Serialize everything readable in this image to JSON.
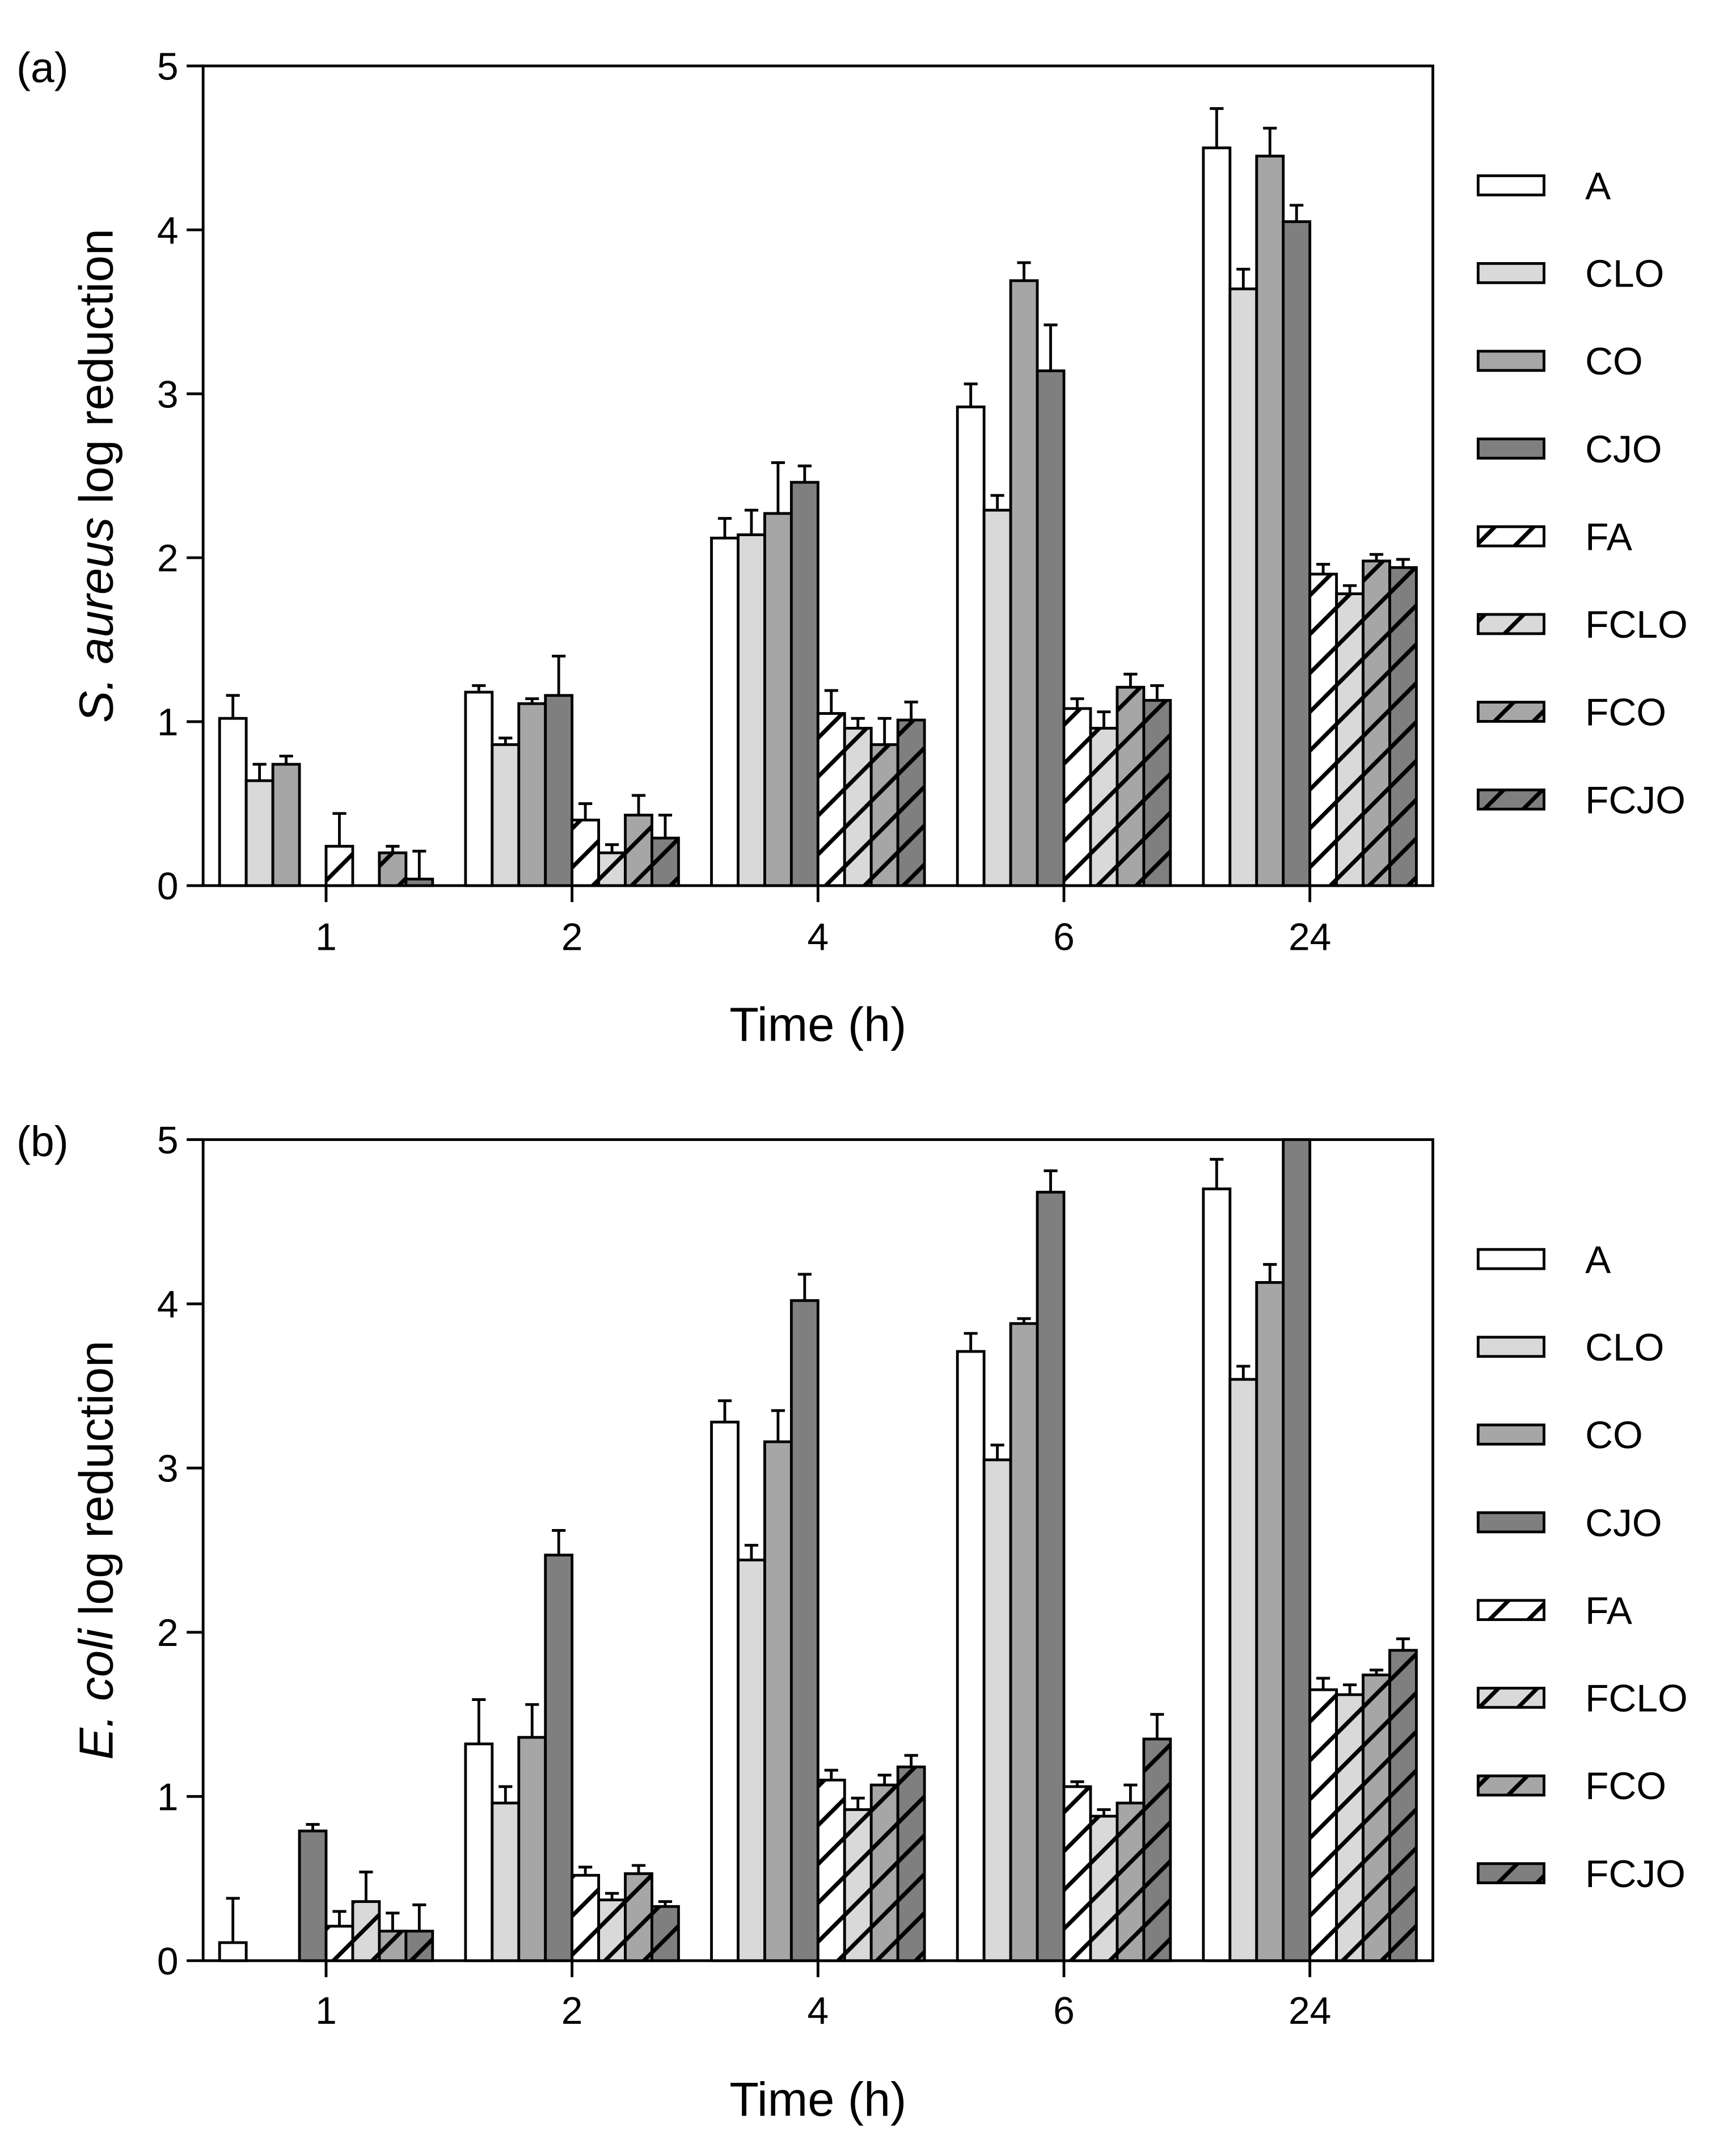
{
  "legend_entries": [
    "A",
    "CLO",
    "CO",
    "CJO",
    "FA",
    "FCLO",
    "FCO",
    "FCJO"
  ],
  "styles": {
    "fills": [
      "#ffffff",
      "#d9d9d9",
      "#a6a6a6",
      "#7f7f7f",
      "#ffffff",
      "#d9d9d9",
      "#a6a6a6",
      "#7f7f7f"
    ],
    "hatched": [
      false,
      false,
      false,
      false,
      true,
      true,
      true,
      true
    ],
    "stroke": "#000000"
  },
  "chart_data": [
    {
      "type": "bar",
      "panel_label": "(a)",
      "title": "",
      "xlabel": "Time (h)",
      "ylabel_italic": "S. aureus",
      "ylabel_rest": " log reduction",
      "categories": [
        "1",
        "2",
        "4",
        "6",
        "24"
      ],
      "ylim": [
        0,
        5
      ],
      "yticks": [
        0,
        1,
        2,
        3,
        4,
        5
      ],
      "legend_position": "right",
      "series": [
        {
          "name": "A",
          "values": [
            1.02,
            1.18,
            2.12,
            2.92,
            4.5
          ],
          "errors": [
            0.14,
            0.04,
            0.12,
            0.14,
            0.24
          ]
        },
        {
          "name": "CLO",
          "values": [
            0.64,
            0.86,
            2.14,
            2.29,
            3.64
          ],
          "errors": [
            0.1,
            0.04,
            0.15,
            0.09,
            0.12
          ]
        },
        {
          "name": "CO",
          "values": [
            0.74,
            1.11,
            2.27,
            3.69,
            4.45
          ],
          "errors": [
            0.05,
            0.03,
            0.31,
            0.11,
            0.17
          ]
        },
        {
          "name": "CJO",
          "values": [
            0.0,
            1.16,
            2.46,
            3.14,
            4.05
          ],
          "errors": [
            0.0,
            0.24,
            0.1,
            0.28,
            0.1
          ]
        },
        {
          "name": "FA",
          "values": [
            0.24,
            0.4,
            1.05,
            1.08,
            1.9
          ],
          "errors": [
            0.2,
            0.1,
            0.14,
            0.06,
            0.06
          ]
        },
        {
          "name": "FCLO",
          "values": [
            0.0,
            0.2,
            0.96,
            0.96,
            1.78
          ],
          "errors": [
            0.0,
            0.05,
            0.06,
            0.1,
            0.05
          ]
        },
        {
          "name": "FCO",
          "values": [
            0.2,
            0.43,
            0.86,
            1.21,
            1.98
          ],
          "errors": [
            0.04,
            0.12,
            0.16,
            0.08,
            0.04
          ]
        },
        {
          "name": "FCJO",
          "values": [
            0.04,
            0.29,
            1.01,
            1.13,
            1.94
          ],
          "errors": [
            0.17,
            0.14,
            0.11,
            0.09,
            0.05
          ]
        }
      ]
    },
    {
      "type": "bar",
      "panel_label": "(b)",
      "title": "",
      "xlabel": "Time (h)",
      "ylabel_italic": "E. coli",
      "ylabel_rest": " log reduction",
      "categories": [
        "1",
        "2",
        "4",
        "6",
        "24"
      ],
      "ylim": [
        0,
        5
      ],
      "yticks": [
        0,
        1,
        2,
        3,
        4,
        5
      ],
      "legend_position": "right",
      "series": [
        {
          "name": "A",
          "values": [
            0.11,
            1.32,
            3.28,
            3.71,
            4.7
          ],
          "errors": [
            0.27,
            0.27,
            0.13,
            0.11,
            0.18
          ]
        },
        {
          "name": "CLO",
          "values": [
            0.0,
            0.96,
            2.44,
            3.05,
            3.54
          ],
          "errors": [
            0.0,
            0.1,
            0.09,
            0.09,
            0.08
          ]
        },
        {
          "name": "CO",
          "values": [
            0.0,
            1.36,
            3.16,
            3.88,
            4.13
          ],
          "errors": [
            0.0,
            0.2,
            0.19,
            0.03,
            0.11
          ]
        },
        {
          "name": "CJO",
          "values": [
            0.79,
            2.47,
            4.02,
            4.68,
            5.0
          ],
          "errors": [
            0.04,
            0.15,
            0.16,
            0.13,
            0.0
          ]
        },
        {
          "name": "FA",
          "values": [
            0.21,
            0.52,
            1.1,
            1.06,
            1.65
          ],
          "errors": [
            0.09,
            0.05,
            0.06,
            0.03,
            0.07
          ]
        },
        {
          "name": "FCLO",
          "values": [
            0.36,
            0.37,
            0.92,
            0.88,
            1.62
          ],
          "errors": [
            0.18,
            0.04,
            0.07,
            0.04,
            0.06
          ]
        },
        {
          "name": "FCO",
          "values": [
            0.18,
            0.53,
            1.07,
            0.96,
            1.74
          ],
          "errors": [
            0.11,
            0.05,
            0.06,
            0.11,
            0.03
          ]
        },
        {
          "name": "FCJO",
          "values": [
            0.18,
            0.33,
            1.18,
            1.35,
            1.89
          ],
          "errors": [
            0.16,
            0.03,
            0.07,
            0.15,
            0.07
          ]
        }
      ]
    }
  ]
}
